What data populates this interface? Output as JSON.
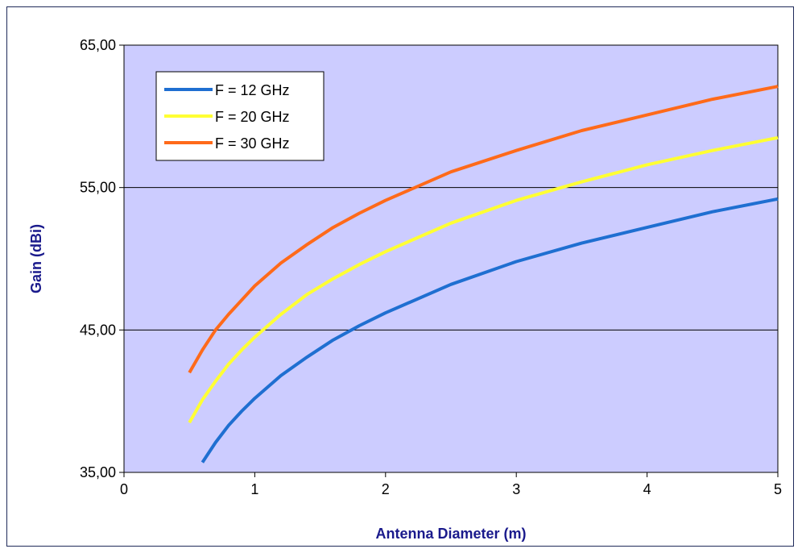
{
  "chart_data": {
    "type": "line",
    "title": "",
    "xlabel": "Antenna Diameter (m)",
    "ylabel": "Gain (dBi)",
    "xlim": [
      0,
      5
    ],
    "ylim": [
      35,
      65
    ],
    "x_ticks": [
      "0",
      "1",
      "2",
      "3",
      "4",
      "5"
    ],
    "y_ticks": [
      "35,00",
      "45,00",
      "55,00",
      "65,00"
    ],
    "grid": "horizontal",
    "legend_position": "top-left",
    "plot_background": "#ccccff",
    "series": [
      {
        "name": "F = 12 GHz",
        "color": "#1f6fd1",
        "x": [
          0.6,
          0.7,
          0.8,
          0.9,
          1.0,
          1.2,
          1.4,
          1.6,
          1.8,
          2.0,
          2.5,
          3.0,
          3.5,
          4.0,
          4.5,
          5.0
        ],
        "y": [
          35.7,
          37.1,
          38.3,
          39.3,
          40.2,
          41.8,
          43.1,
          44.3,
          45.3,
          46.2,
          48.2,
          49.8,
          51.1,
          52.2,
          53.3,
          54.2
        ]
      },
      {
        "name": "F = 20 GHz",
        "color": "#ffff33",
        "x": [
          0.5,
          0.6,
          0.7,
          0.8,
          0.9,
          1.0,
          1.2,
          1.4,
          1.6,
          1.8,
          2.0,
          2.5,
          3.0,
          3.5,
          4.0,
          4.5,
          5.0
        ],
        "y": [
          38.5,
          40.1,
          41.4,
          42.6,
          43.6,
          44.5,
          46.1,
          47.5,
          48.6,
          49.6,
          50.5,
          52.5,
          54.1,
          55.4,
          56.6,
          57.6,
          58.5
        ]
      },
      {
        "name": "F = 30 GHz",
        "color": "#ff6a1a",
        "x": [
          0.5,
          0.6,
          0.7,
          0.8,
          0.9,
          1.0,
          1.2,
          1.4,
          1.6,
          1.8,
          2.0,
          2.5,
          3.0,
          3.5,
          4.0,
          4.5,
          5.0
        ],
        "y": [
          42.0,
          43.6,
          45.0,
          46.1,
          47.1,
          48.1,
          49.7,
          51.0,
          52.2,
          53.2,
          54.1,
          56.1,
          57.6,
          59.0,
          60.1,
          61.2,
          62.1
        ]
      }
    ]
  }
}
